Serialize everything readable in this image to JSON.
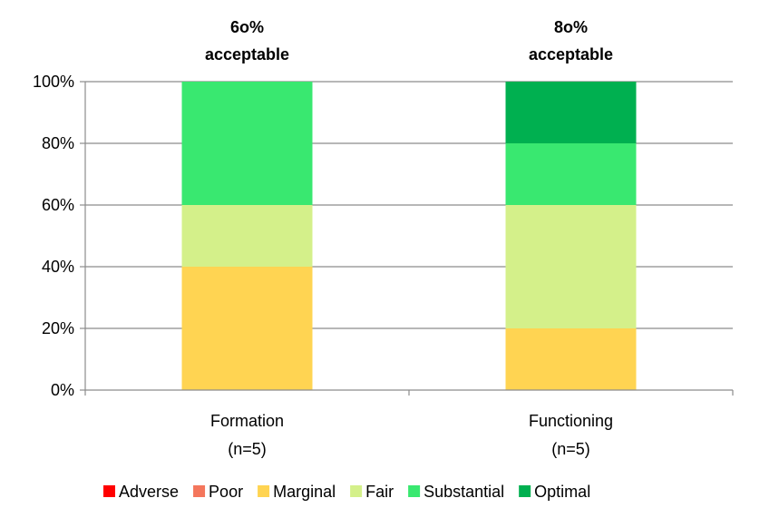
{
  "chart_data": {
    "type": "bar",
    "stacked": true,
    "categories": [
      "Formation",
      "Functioning"
    ],
    "category_sublabels": [
      "(n=5)",
      "(n=5)"
    ],
    "annotations": [
      [
        "6o%",
        "acceptable"
      ],
      [
        "8o%",
        "acceptable"
      ]
    ],
    "ylim": [
      0,
      100
    ],
    "yticks": [
      0,
      20,
      40,
      60,
      80,
      100
    ],
    "ytick_labels": [
      "0%",
      "20%",
      "40%",
      "60%",
      "80%",
      "100%"
    ],
    "grid": true,
    "legend_position": "bottom",
    "series": [
      {
        "name": "Adverse",
        "color": "#ff0000",
        "values": [
          0,
          0
        ]
      },
      {
        "name": "Poor",
        "color": "#f4765c",
        "values": [
          0,
          0
        ]
      },
      {
        "name": "Marginal",
        "color": "#ffd452",
        "values": [
          40,
          20
        ]
      },
      {
        "name": "Fair",
        "color": "#d4f08a",
        "values": [
          20,
          40
        ]
      },
      {
        "name": "Substantial",
        "color": "#39e870",
        "values": [
          40,
          20
        ]
      },
      {
        "name": "Optimal",
        "color": "#00b050",
        "values": [
          0,
          20
        ]
      }
    ]
  }
}
